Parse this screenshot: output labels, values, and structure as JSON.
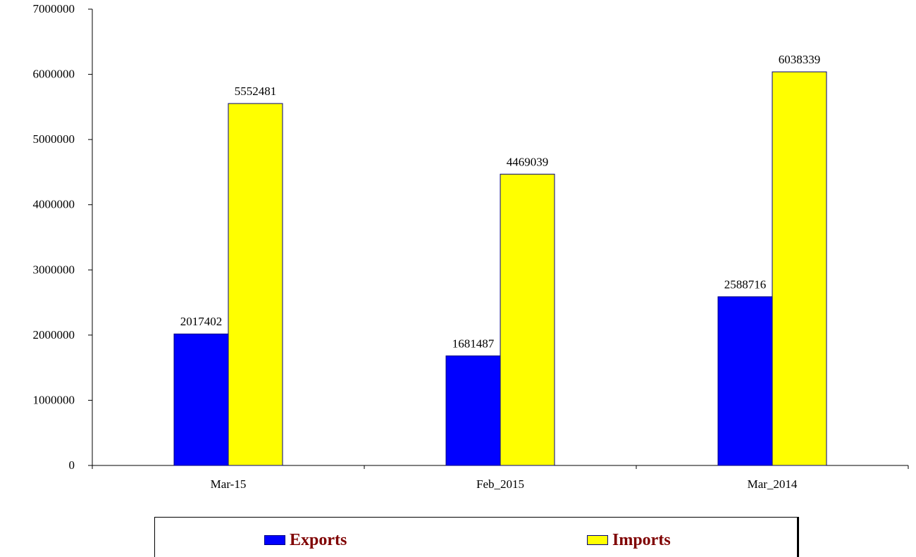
{
  "chart_data": {
    "type": "bar",
    "categories": [
      "Mar-15",
      "Feb_2015",
      "Mar_2014"
    ],
    "series": [
      {
        "name": "Exports",
        "color": "#0000ff",
        "values": [
          2017402,
          1681487,
          2588716
        ],
        "value_labels": [
          "2017402",
          "1681487",
          "2588716"
        ]
      },
      {
        "name": "Imports",
        "color": "#ffff00",
        "values": [
          5552481,
          4469039,
          6038339
        ],
        "value_labels": [
          "5552481",
          "4469039",
          "6038339"
        ]
      }
    ],
    "ylim": [
      0,
      7000000
    ],
    "yticks": [
      0,
      1000000,
      2000000,
      3000000,
      4000000,
      5000000,
      6000000,
      7000000
    ],
    "ytick_labels": [
      "0",
      "1000000",
      "2000000",
      "3000000",
      "4000000",
      "5000000",
      "6000000",
      "7000000"
    ],
    "title": "",
    "xlabel": "",
    "ylabel": "",
    "grid": false,
    "legend_position": "bottom",
    "bar_outline_color": "#000080",
    "axis_color": "#000000"
  },
  "legend": {
    "items": [
      {
        "label": "Exports",
        "color": "#0000ff"
      },
      {
        "label": "Imports",
        "color": "#ffff00"
      }
    ]
  }
}
